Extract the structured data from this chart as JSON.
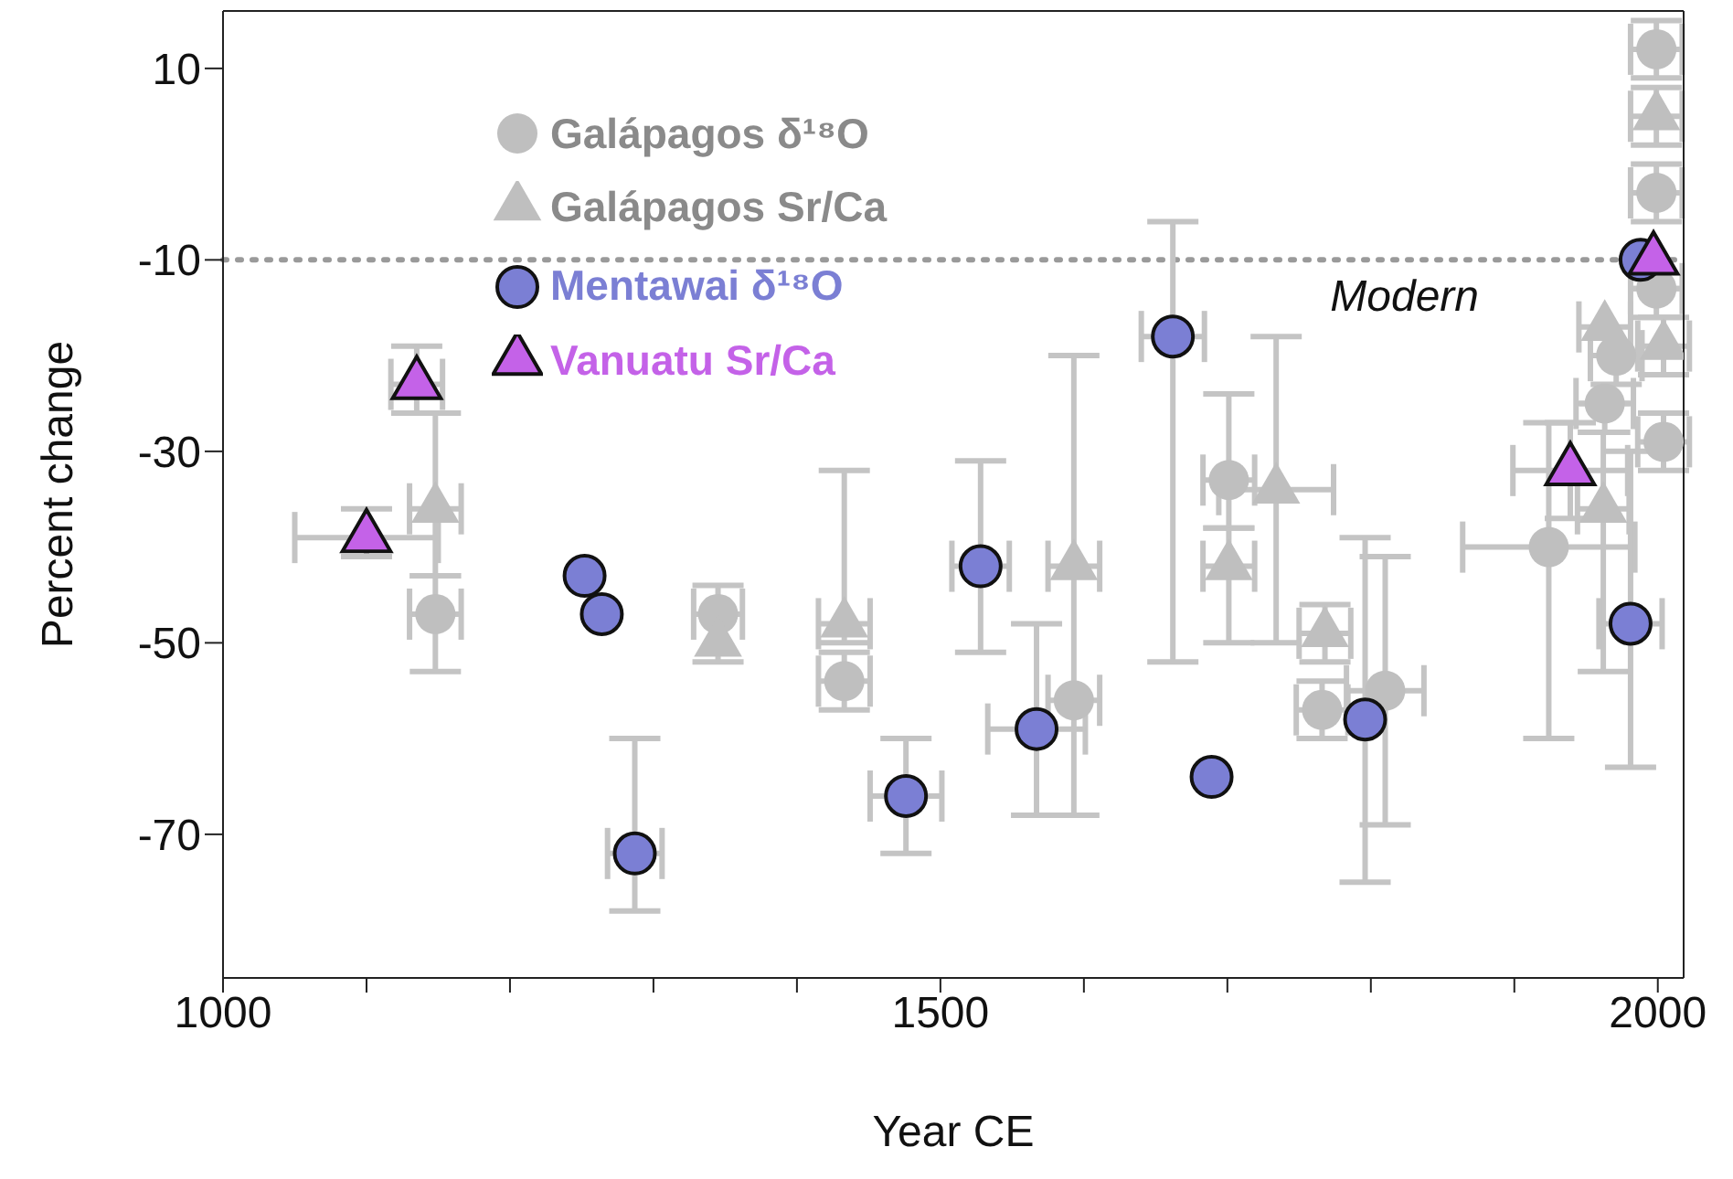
{
  "chart_data": {
    "type": "scatter",
    "xlabel": "Year CE",
    "ylabel": "Percent change",
    "xlim": [
      1000,
      2018
    ],
    "ylim": [
      -85,
      16
    ],
    "xticks": [
      1000,
      {
        "value": 1100,
        "label": null
      },
      {
        "value": 1200,
        "label": null
      },
      {
        "value": 1300,
        "label": null
      },
      {
        "value": 1400,
        "label": null
      },
      1500,
      {
        "value": 1600,
        "label": null
      },
      {
        "value": 1700,
        "label": null
      },
      {
        "value": 1800,
        "label": null
      },
      {
        "value": 1900,
        "label": null
      },
      2000
    ],
    "yticks": [
      10,
      -10,
      -30,
      -50,
      -70
    ],
    "grid": false,
    "legend": "top left",
    "ref_lines": [
      {
        "axis": "y",
        "value": -10,
        "label": "Modern",
        "color": "#9a9a9a",
        "line_style": "dotted"
      }
    ],
    "series": [
      {
        "name": "Galápagos δ¹⁸O",
        "color": "#bfbfbf",
        "marker": "circle",
        "x": [
          1148,
          1345,
          1433,
          1593,
          1701,
          1766,
          1810,
          1924,
          1963,
          1971,
          2004,
          1999,
          1999,
          1999
        ],
        "values": [
          -47,
          -47,
          -54,
          -56,
          -33,
          -57,
          -55,
          -40,
          -25,
          -20,
          -29,
          12,
          -3,
          -13
        ],
        "errors": [
          [
            -53,
            -43
          ],
          [
            -52,
            -44
          ],
          [
            -57,
            -51
          ],
          null,
          [
            -38,
            -24
          ],
          [
            -60,
            -54
          ],
          [
            -69,
            -41
          ],
          [
            -60,
            -27
          ],
          [
            -28,
            -25
          ],
          [
            -23,
            -20
          ],
          [
            -32,
            -26
          ],
          [
            9,
            15
          ],
          [
            -6,
            0
          ],
          [
            -16,
            -13
          ]
        ],
        "xerrors": [
          18,
          17,
          18,
          18,
          18,
          18,
          27,
          60,
          20,
          18,
          18,
          18,
          18,
          18
        ]
      },
      {
        "name": "Galápagos Sr/Ca",
        "color": "#bfbfbf",
        "marker": "triangle",
        "x": [
          1148,
          1345,
          1433,
          1593,
          1701,
          1734,
          1768,
          1962,
          1963,
          2004,
          1999
        ],
        "values": [
          -36,
          -50,
          -48,
          -42,
          -42,
          -34,
          -49,
          -36,
          -17,
          -19,
          5
        ],
        "errors": [
          [
            -43,
            -26
          ],
          null,
          [
            -50,
            -32
          ],
          [
            -68,
            -20
          ],
          [
            -50,
            -38
          ],
          [
            -50,
            -18
          ],
          [
            -52,
            -46
          ],
          [
            -53,
            -28
          ],
          null,
          [
            -22,
            -16
          ],
          [
            2,
            8
          ]
        ],
        "xerrors": [
          18,
          null,
          18,
          18,
          18,
          40,
          18,
          18,
          18,
          18,
          18
        ]
      },
      {
        "name": "Mentawai δ¹⁸O",
        "color": "#7b7fd4",
        "marker": "circle",
        "x": [
          1252,
          1264,
          1287,
          1476,
          1528,
          1567,
          1662,
          1689,
          1796,
          1981,
          1988
        ],
        "values": [
          -43,
          -47,
          -72,
          -66,
          -42,
          -59,
          -18,
          -64,
          -58,
          -48,
          -10
        ],
        "errors": [
          null,
          null,
          [
            -78,
            -60
          ],
          [
            -72,
            -60
          ],
          [
            -51,
            -31
          ],
          [
            -68,
            -48
          ],
          [
            -52,
            -6
          ],
          null,
          [
            -75,
            -39
          ],
          [
            -63,
            -30
          ],
          null
        ],
        "xerrors": [
          null,
          null,
          19,
          25,
          20,
          34,
          22,
          null,
          null,
          22,
          null
        ]
      },
      {
        "name": "Vanuatu Sr/Ca",
        "color": "#c462e8",
        "marker": "triangle",
        "x": [
          1135,
          1100,
          1939,
          1997
        ],
        "values": [
          -23,
          -39,
          -32,
          -10
        ],
        "errors": [
          [
            -26,
            -19
          ],
          [
            -41,
            -36
          ],
          [
            -37,
            -27
          ],
          null
        ],
        "xerrors": [
          18,
          50,
          40,
          null
        ]
      }
    ]
  }
}
